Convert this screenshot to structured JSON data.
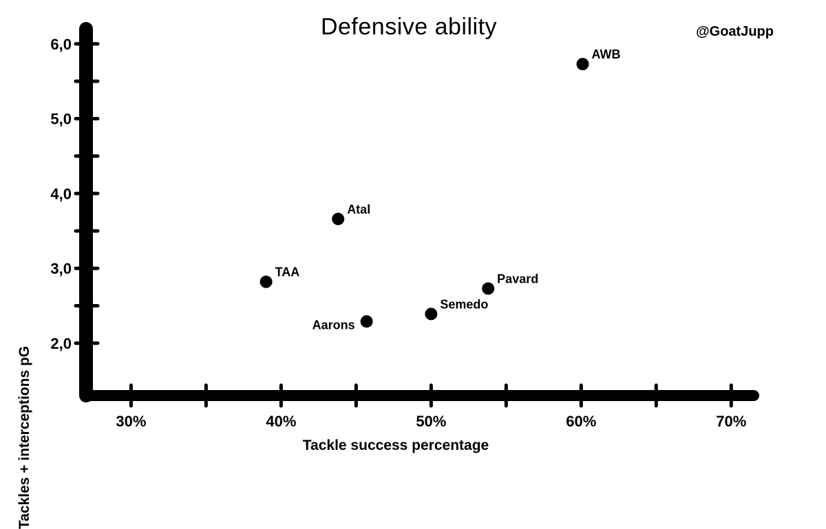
{
  "title": "Defensive ability",
  "handle": "@GoatJupp",
  "chart_data": {
    "type": "scatter",
    "title": "Defensive ability",
    "xlabel": "Tackle success percentage",
    "ylabel": "Tackles + interceptions pG",
    "xlim": [
      27,
      71.5
    ],
    "ylim": [
      1.3,
      6.2
    ],
    "x_ticks": [
      30,
      40,
      50,
      60,
      70
    ],
    "x_tick_labels": [
      "30%",
      "40%",
      "50%",
      "60%",
      "70%"
    ],
    "x_minor_ticks": [
      35,
      45,
      55,
      65
    ],
    "y_ticks": [
      2,
      3,
      4,
      5,
      6
    ],
    "y_tick_labels": [
      "2,0",
      "3,0",
      "4,0",
      "5,0",
      "6,0"
    ],
    "y_minor_ticks": [
      2.5,
      3.5,
      4.5,
      5.5
    ],
    "grid": false,
    "points": [
      {
        "label": "AWB",
        "x": 60.1,
        "y": 5.73,
        "label_side": "right"
      },
      {
        "label": "Atal",
        "x": 43.8,
        "y": 3.66,
        "label_side": "right"
      },
      {
        "label": "TAA",
        "x": 39.0,
        "y": 2.82,
        "label_side": "right"
      },
      {
        "label": "Pavard",
        "x": 53.8,
        "y": 2.73,
        "label_side": "right"
      },
      {
        "label": "Semedo",
        "x": 50.0,
        "y": 2.39,
        "label_side": "right"
      },
      {
        "label": "Aarons",
        "x": 45.7,
        "y": 2.29,
        "label_side": "left"
      }
    ]
  }
}
